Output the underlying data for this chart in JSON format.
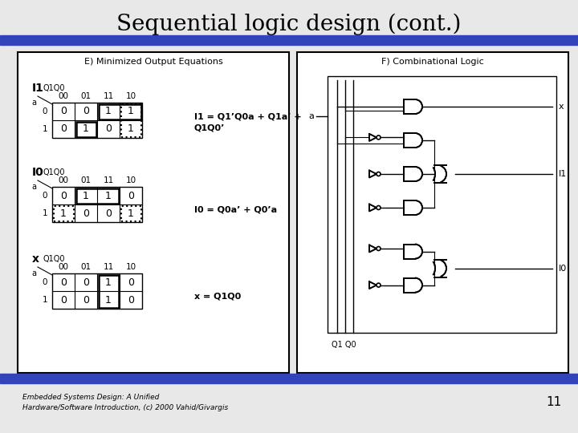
{
  "title": "Sequential logic design (cont.)",
  "title_fontsize": 20,
  "background_color": "#e8e8e8",
  "slide_bg": "#e8e8e8",
  "blue_bar_color": "#3344bb",
  "footer_text": "Embedded Systems Design: A Unified\nHardware/Software Introduction, (c) 2000 Vahid/Givargis",
  "page_number": "11",
  "left_panel_title": "E) Minimized Output Equations",
  "right_panel_title": "F) Combinational Logic",
  "I1_eq_line1": "I1 = Q1’Q0a + Q1a’ +",
  "I1_eq_line2": "Q1Q0’",
  "I0_eq": "I0 = Q0a’ + Q0’a",
  "x_eq": "x = Q1Q0"
}
